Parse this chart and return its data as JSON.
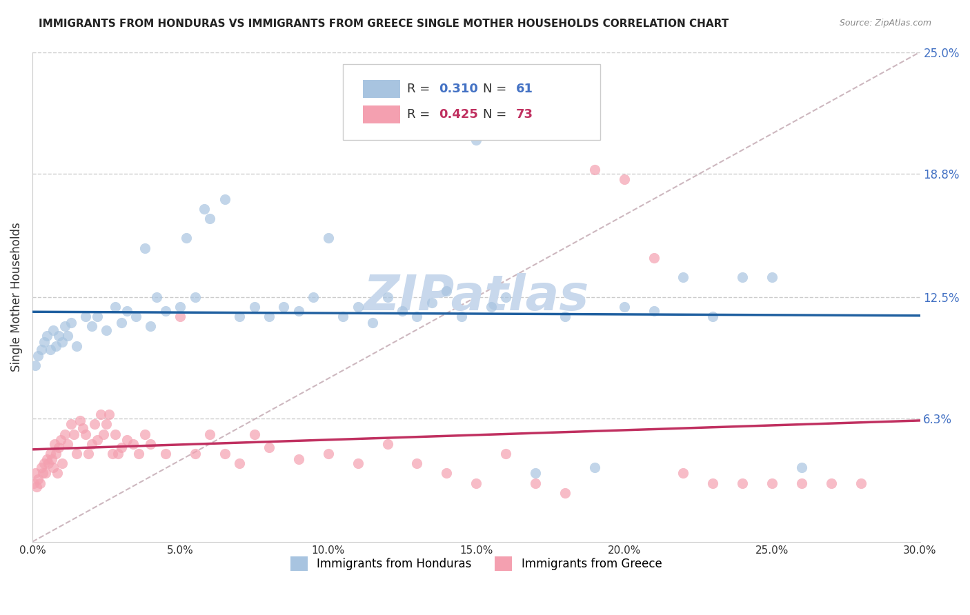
{
  "title": "IMMIGRANTS FROM HONDURAS VS IMMIGRANTS FROM GREECE SINGLE MOTHER HOUSEHOLDS CORRELATION CHART",
  "source": "Source: ZipAtlas.com",
  "ylabel_label": "Single Mother Households",
  "x_min": 0.0,
  "x_max": 30.0,
  "y_min": 0.0,
  "y_max": 25.0,
  "ytick_vals": [
    6.3,
    12.5,
    18.8,
    25.0
  ],
  "xtick_vals": [
    0.0,
    5.0,
    10.0,
    15.0,
    20.0,
    25.0,
    30.0
  ],
  "legend_r_honduras": "0.310",
  "legend_n_honduras": "61",
  "legend_r_greece": "0.425",
  "legend_n_greece": "73",
  "color_honduras": "#a8c4e0",
  "color_greece": "#f4a0b0",
  "color_regression_honduras": "#2060a0",
  "color_regression_greece": "#c03060",
  "color_diagonal": "#c8b0b8",
  "watermark": "ZIPatlas",
  "watermark_color": "#c8d8ec",
  "honduras_x": [
    0.1,
    0.2,
    0.3,
    0.4,
    0.5,
    0.6,
    0.7,
    0.8,
    0.9,
    1.0,
    1.1,
    1.2,
    1.3,
    1.5,
    1.8,
    2.0,
    2.2,
    2.5,
    2.8,
    3.0,
    3.2,
    3.5,
    3.8,
    4.0,
    4.2,
    4.5,
    5.0,
    5.2,
    5.5,
    5.8,
    6.0,
    6.5,
    7.0,
    7.5,
    8.0,
    8.5,
    9.0,
    9.5,
    10.0,
    10.5,
    11.0,
    11.5,
    12.0,
    12.5,
    13.0,
    13.5,
    14.0,
    14.5,
    15.0,
    15.5,
    16.0,
    17.0,
    18.0,
    19.0,
    20.0,
    21.0,
    22.0,
    23.0,
    24.0,
    25.0,
    26.0
  ],
  "honduras_y": [
    9.0,
    9.5,
    9.8,
    10.2,
    10.5,
    9.8,
    10.8,
    10.0,
    10.5,
    10.2,
    11.0,
    10.5,
    11.2,
    10.0,
    11.5,
    11.0,
    11.5,
    10.8,
    12.0,
    11.2,
    11.8,
    11.5,
    15.0,
    11.0,
    12.5,
    11.8,
    12.0,
    15.5,
    12.5,
    17.0,
    16.5,
    17.5,
    11.5,
    12.0,
    11.5,
    12.0,
    11.8,
    12.5,
    15.5,
    11.5,
    12.0,
    11.2,
    12.5,
    11.8,
    11.5,
    12.2,
    12.8,
    11.5,
    20.5,
    12.0,
    12.5,
    3.5,
    11.5,
    3.8,
    12.0,
    11.8,
    13.5,
    11.5,
    13.5,
    13.5,
    3.8
  ],
  "greece_x": [
    0.05,
    0.1,
    0.15,
    0.2,
    0.25,
    0.3,
    0.35,
    0.4,
    0.45,
    0.5,
    0.55,
    0.6,
    0.65,
    0.7,
    0.75,
    0.8,
    0.85,
    0.9,
    0.95,
    1.0,
    1.1,
    1.2,
    1.3,
    1.4,
    1.5,
    1.6,
    1.7,
    1.8,
    1.9,
    2.0,
    2.1,
    2.2,
    2.3,
    2.4,
    2.5,
    2.6,
    2.7,
    2.8,
    2.9,
    3.0,
    3.2,
    3.4,
    3.6,
    3.8,
    4.0,
    4.5,
    5.0,
    5.5,
    6.0,
    6.5,
    7.0,
    7.5,
    8.0,
    9.0,
    10.0,
    11.0,
    12.0,
    13.0,
    14.0,
    15.0,
    16.0,
    17.0,
    18.0,
    19.0,
    20.0,
    21.0,
    22.0,
    23.0,
    24.0,
    25.0,
    26.0,
    27.0,
    28.0
  ],
  "greece_y": [
    3.0,
    3.5,
    2.8,
    3.2,
    3.0,
    3.8,
    3.5,
    4.0,
    3.5,
    4.2,
    4.0,
    4.5,
    4.2,
    3.8,
    5.0,
    4.5,
    3.5,
    4.8,
    5.2,
    4.0,
    5.5,
    5.0,
    6.0,
    5.5,
    4.5,
    6.2,
    5.8,
    5.5,
    4.5,
    5.0,
    6.0,
    5.2,
    6.5,
    5.5,
    6.0,
    6.5,
    4.5,
    5.5,
    4.5,
    4.8,
    5.2,
    5.0,
    4.5,
    5.5,
    5.0,
    4.5,
    11.5,
    4.5,
    5.5,
    4.5,
    4.0,
    5.5,
    4.8,
    4.2,
    4.5,
    4.0,
    5.0,
    4.0,
    3.5,
    3.0,
    4.5,
    3.0,
    2.5,
    19.0,
    18.5,
    14.5,
    3.5,
    3.0,
    3.0,
    3.0,
    3.0,
    3.0,
    3.0
  ]
}
